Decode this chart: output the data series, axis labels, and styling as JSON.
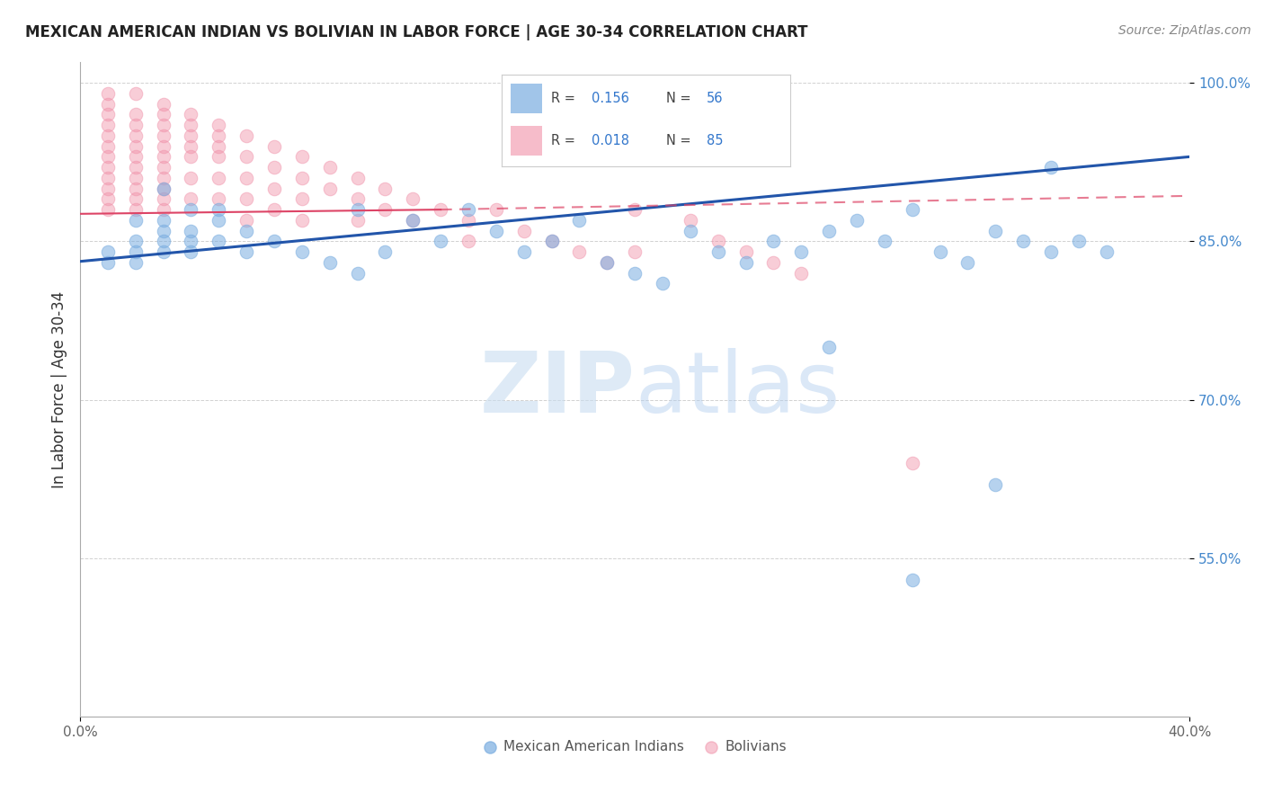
{
  "title": "MEXICAN AMERICAN INDIAN VS BOLIVIAN IN LABOR FORCE | AGE 30-34 CORRELATION CHART",
  "source": "Source: ZipAtlas.com",
  "ylabel": "In Labor Force | Age 30-34",
  "xlim": [
    0.0,
    0.4
  ],
  "ylim": [
    0.4,
    1.02
  ],
  "blue_color": "#7aade0",
  "pink_color": "#f090a8",
  "blue_line_color": "#2255aa",
  "pink_line_color": "#dd4466",
  "R_blue": 0.156,
  "N_blue": 56,
  "R_pink": 0.018,
  "N_pink": 85,
  "legend_labels": [
    "Mexican American Indians",
    "Bolivians"
  ],
  "blue_x": [
    0.01,
    0.01,
    0.02,
    0.02,
    0.02,
    0.02,
    0.03,
    0.03,
    0.03,
    0.03,
    0.03,
    0.04,
    0.04,
    0.04,
    0.04,
    0.05,
    0.05,
    0.05,
    0.06,
    0.06,
    0.07,
    0.08,
    0.09,
    0.1,
    0.1,
    0.11,
    0.12,
    0.13,
    0.14,
    0.15,
    0.16,
    0.17,
    0.18,
    0.19,
    0.2,
    0.21,
    0.22,
    0.23,
    0.24,
    0.25,
    0.26,
    0.27,
    0.28,
    0.29,
    0.3,
    0.31,
    0.32,
    0.33,
    0.34,
    0.35,
    0.36,
    0.37,
    0.27,
    0.35,
    0.33,
    0.3
  ],
  "blue_y": [
    0.84,
    0.83,
    0.87,
    0.85,
    0.84,
    0.83,
    0.9,
    0.87,
    0.86,
    0.85,
    0.84,
    0.88,
    0.86,
    0.85,
    0.84,
    0.88,
    0.87,
    0.85,
    0.86,
    0.84,
    0.85,
    0.84,
    0.83,
    0.88,
    0.82,
    0.84,
    0.87,
    0.85,
    0.88,
    0.86,
    0.84,
    0.85,
    0.87,
    0.83,
    0.82,
    0.81,
    0.86,
    0.84,
    0.83,
    0.85,
    0.84,
    0.86,
    0.87,
    0.85,
    0.88,
    0.84,
    0.83,
    0.86,
    0.85,
    0.92,
    0.85,
    0.84,
    0.75,
    0.84,
    0.62,
    0.53
  ],
  "pink_x": [
    0.01,
    0.01,
    0.01,
    0.01,
    0.01,
    0.01,
    0.01,
    0.01,
    0.01,
    0.01,
    0.01,
    0.01,
    0.02,
    0.02,
    0.02,
    0.02,
    0.02,
    0.02,
    0.02,
    0.02,
    0.02,
    0.02,
    0.02,
    0.03,
    0.03,
    0.03,
    0.03,
    0.03,
    0.03,
    0.03,
    0.03,
    0.03,
    0.03,
    0.03,
    0.04,
    0.04,
    0.04,
    0.04,
    0.04,
    0.04,
    0.04,
    0.05,
    0.05,
    0.05,
    0.05,
    0.05,
    0.05,
    0.06,
    0.06,
    0.06,
    0.06,
    0.06,
    0.07,
    0.07,
    0.07,
    0.07,
    0.08,
    0.08,
    0.08,
    0.08,
    0.09,
    0.09,
    0.1,
    0.1,
    0.1,
    0.11,
    0.11,
    0.12,
    0.12,
    0.13,
    0.14,
    0.14,
    0.15,
    0.16,
    0.17,
    0.18,
    0.19,
    0.2,
    0.2,
    0.22,
    0.23,
    0.24,
    0.25,
    0.26,
    0.3
  ],
  "pink_y": [
    0.99,
    0.98,
    0.97,
    0.96,
    0.95,
    0.94,
    0.93,
    0.92,
    0.91,
    0.9,
    0.89,
    0.88,
    0.99,
    0.97,
    0.96,
    0.95,
    0.94,
    0.93,
    0.92,
    0.91,
    0.9,
    0.89,
    0.88,
    0.98,
    0.97,
    0.96,
    0.95,
    0.94,
    0.93,
    0.92,
    0.91,
    0.9,
    0.89,
    0.88,
    0.97,
    0.96,
    0.95,
    0.94,
    0.93,
    0.91,
    0.89,
    0.96,
    0.95,
    0.94,
    0.93,
    0.91,
    0.89,
    0.95,
    0.93,
    0.91,
    0.89,
    0.87,
    0.94,
    0.92,
    0.9,
    0.88,
    0.93,
    0.91,
    0.89,
    0.87,
    0.92,
    0.9,
    0.91,
    0.89,
    0.87,
    0.9,
    0.88,
    0.89,
    0.87,
    0.88,
    0.87,
    0.85,
    0.88,
    0.86,
    0.85,
    0.84,
    0.83,
    0.88,
    0.84,
    0.87,
    0.85,
    0.84,
    0.83,
    0.82,
    0.64
  ]
}
